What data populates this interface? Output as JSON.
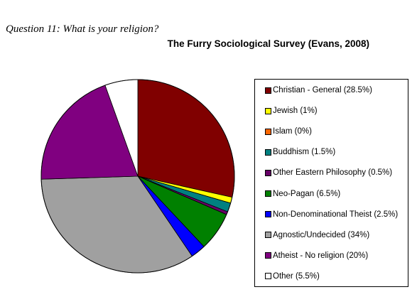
{
  "question": "Question 11: What is your religion?",
  "chart_data": {
    "type": "pie",
    "title": "The Furry Sociological Survey (Evans, 2008)",
    "legend_position": "right",
    "slices": [
      {
        "label": "Christian - General (28.5%)",
        "value": 28.5,
        "color": "#800000"
      },
      {
        "label": "Jewish (1%)",
        "value": 1,
        "color": "#ffff00"
      },
      {
        "label": "Islam (0%)",
        "value": 0,
        "color": "#ff6600"
      },
      {
        "label": "Buddhism (1.5%)",
        "value": 1.5,
        "color": "#008080"
      },
      {
        "label": "Other Eastern Philosophy (0.5%)",
        "value": 0.5,
        "color": "#660066"
      },
      {
        "label": "Neo-Pagan (6.5%)",
        "value": 6.5,
        "color": "#008000"
      },
      {
        "label": "Non-Denominational Theist (2.5%)",
        "value": 2.5,
        "color": "#0000ff"
      },
      {
        "label": "Agnostic/Undecided (34%)",
        "value": 34,
        "color": "#a0a0a0"
      },
      {
        "label": "Atheist - No religion (20%)",
        "value": 20,
        "color": "#800080"
      },
      {
        "label": "Other (5.5%)",
        "value": 5.5,
        "color": "#ffffff"
      }
    ]
  }
}
